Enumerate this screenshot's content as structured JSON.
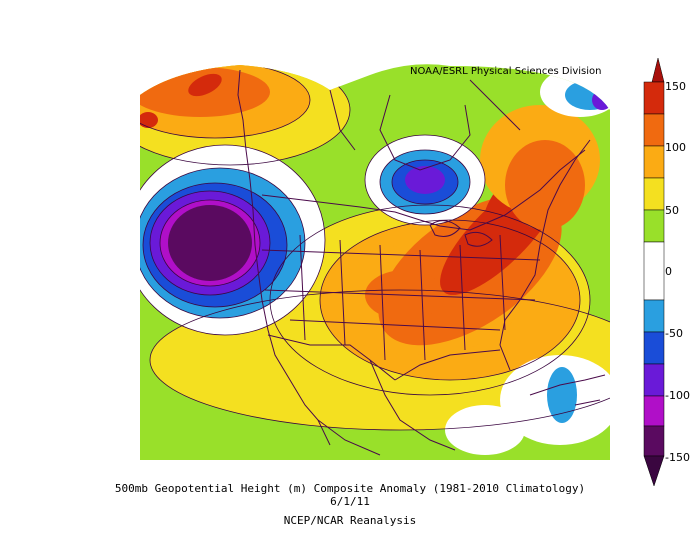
{
  "title": "500mb Geopotential Height (m) Composite Anomaly (1981-2010 Climatology)",
  "date": "6/1/11",
  "source": "NCEP/NCAR Reanalysis",
  "credit": "NOAA/ESRL Physical Sciences Division",
  "colorbar": {
    "labels": [
      "150",
      "100",
      "50",
      "0",
      "-50",
      "-100",
      "-150"
    ],
    "levels": [
      {
        "from": 120,
        "to": 150,
        "color": "#d42a0c"
      },
      {
        "from": 90,
        "to": 120,
        "color": "#f06a10"
      },
      {
        "from": 60,
        "to": 90,
        "color": "#fbab14"
      },
      {
        "from": 30,
        "to": 60,
        "color": "#f4e020"
      },
      {
        "from": 0,
        "to": 30,
        "color": "#99e02a"
      },
      {
        "from": -30,
        "to": 0,
        "color": "#ffffff"
      },
      {
        "from": -60,
        "to": -30,
        "color": "#2a9fe0"
      },
      {
        "from": -90,
        "to": -60,
        "color": "#1a4dd8"
      },
      {
        "from": -120,
        "to": -90,
        "color": "#6a1ad8"
      },
      {
        "from": -150,
        "to": -120,
        "color": "#b00fc8"
      },
      {
        "from": -180,
        "to": -150,
        "color": "#5a0a60"
      }
    ],
    "top_extend_color": "#a8100c",
    "bottom_extend_color": "#3a0640"
  }
}
